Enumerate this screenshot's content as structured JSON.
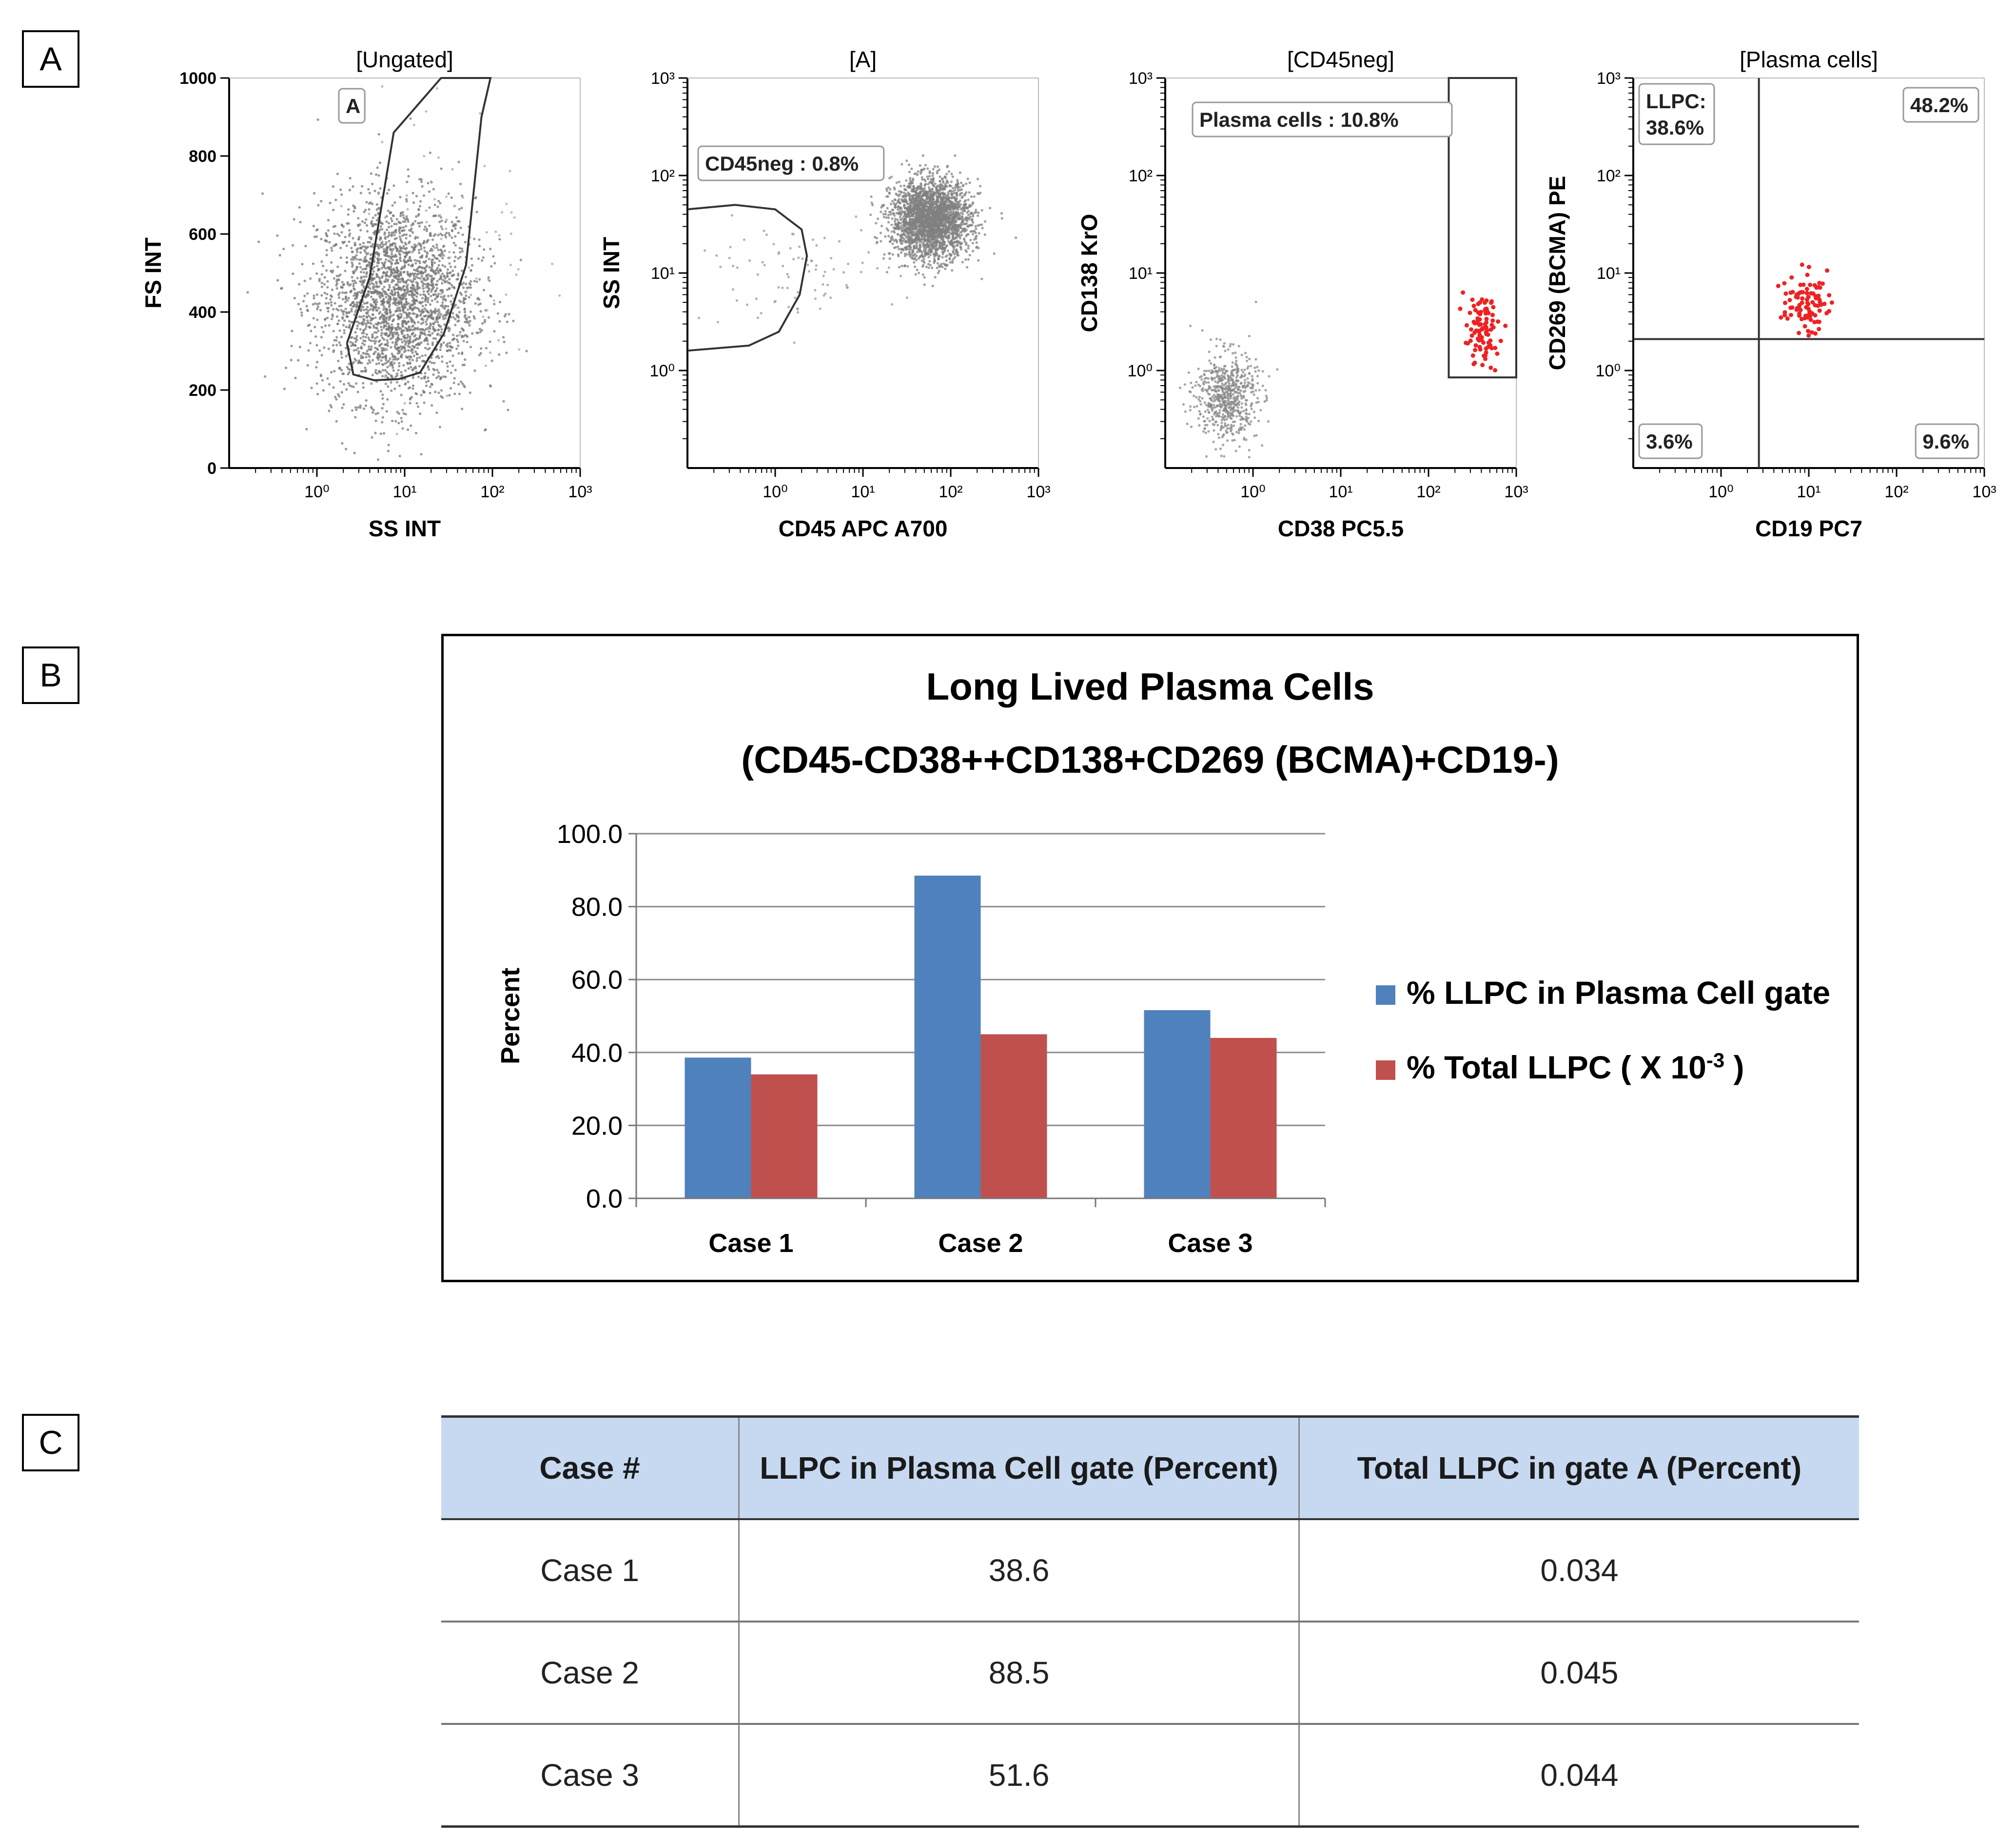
{
  "panel_labels": {
    "a": "A",
    "b": "B",
    "c": "C"
  },
  "chart_data": [
    {
      "type": "scatter",
      "title": "[Ungated]",
      "xlabel": "SS INT",
      "ylabel": "FS INT",
      "x_scale": "log",
      "xlim": [
        0.1,
        1000
      ],
      "x_ticks": [
        {
          "value": 1,
          "label": "10⁰"
        },
        {
          "value": 10,
          "label": "10¹"
        },
        {
          "value": 100,
          "label": "10²"
        },
        {
          "value": 1000,
          "label": "10³"
        }
      ],
      "y_scale": "linear",
      "ylim": [
        0,
        1000
      ],
      "y_ticks": [
        {
          "value": 0,
          "label": "0"
        },
        {
          "value": 200,
          "label": "200"
        },
        {
          "value": 400,
          "label": "400"
        },
        {
          "value": 600,
          "label": "600"
        },
        {
          "value": 800,
          "label": "800"
        },
        {
          "value": 1000,
          "label": "1000"
        }
      ],
      "gate": {
        "label": "A",
        "shape": "polygon",
        "vertices": [
          [
            2.2,
            320
          ],
          [
            2.6,
            240
          ],
          [
            4.5,
            225
          ],
          [
            8.5,
            228
          ],
          [
            15,
            245
          ],
          [
            28,
            345
          ],
          [
            50,
            520
          ],
          [
            75,
            900
          ],
          [
            95,
            1000
          ],
          [
            26,
            1000
          ],
          [
            7.5,
            860
          ],
          [
            4.0,
            490
          ],
          [
            2.2,
            320
          ]
        ]
      },
      "populations": [
        {
          "color": "#777777",
          "density": "dense",
          "x_center": 8,
          "x_spread": 0.9,
          "y_center": 430,
          "y_spread": 130
        },
        {
          "color": "#aaaaaa",
          "density": "sparse",
          "x_center": 30,
          "x_spread": 1.0,
          "y_center": 560,
          "y_spread": 200
        }
      ]
    },
    {
      "type": "scatter",
      "title": "[A]",
      "xlabel": "CD45 APC A700",
      "ylabel": "SS INT",
      "x_scale": "log",
      "xlim": [
        0.1,
        1000
      ],
      "x_ticks": [
        {
          "value": 1,
          "label": "10⁰"
        },
        {
          "value": 10,
          "label": "10¹"
        },
        {
          "value": 100,
          "label": "10²"
        },
        {
          "value": 1000,
          "label": "10³"
        }
      ],
      "y_scale": "log",
      "ylim": [
        0.1,
        1000
      ],
      "y_ticks": [
        {
          "value": 1,
          "label": "10⁰"
        },
        {
          "value": 10,
          "label": "10¹"
        },
        {
          "value": 100,
          "label": "10²"
        },
        {
          "value": 1000,
          "label": "10³"
        }
      ],
      "gate": {
        "label": "CD45neg : 0.8%",
        "shape": "polygon",
        "vertices": [
          [
            0.1,
            1.6
          ],
          [
            0.5,
            1.8
          ],
          [
            1.1,
            2.5
          ],
          [
            1.9,
            6
          ],
          [
            2.3,
            15
          ],
          [
            2,
            28
          ],
          [
            1.0,
            45
          ],
          [
            0.35,
            50
          ],
          [
            0.1,
            45
          ]
        ]
      },
      "populations": [
        {
          "color": "#808080",
          "density": "dense",
          "x_center": 60,
          "x_spread": 0.45,
          "y_center": 35,
          "y_spread": 0.4
        },
        {
          "color": "#999999",
          "density": "sparse",
          "x_center": 1.5,
          "x_spread": 1.2,
          "y_center": 10,
          "y_spread": 0.5
        }
      ]
    },
    {
      "type": "scatter",
      "title": "[CD45neg]",
      "xlabel": "CD38 PC5.5",
      "ylabel": "CD138 KrO",
      "x_scale": "log",
      "xlim": [
        0.1,
        1000
      ],
      "x_ticks": [
        {
          "value": 1,
          "label": "10⁰"
        },
        {
          "value": 10,
          "label": "10¹"
        },
        {
          "value": 100,
          "label": "10²"
        },
        {
          "value": 1000,
          "label": "10³"
        }
      ],
      "y_scale": "log",
      "ylim": [
        0.1,
        1000
      ],
      "y_ticks": [
        {
          "value": 1,
          "label": "10⁰"
        },
        {
          "value": 10,
          "label": "10¹"
        },
        {
          "value": 100,
          "label": "10²"
        },
        {
          "value": 1000,
          "label": "10³"
        }
      ],
      "gate": {
        "label": "Plasma cells : 10.8%",
        "shape": "rectangle",
        "x_range": [
          170,
          1000
        ],
        "y_range": [
          0.85,
          1000
        ]
      },
      "populations": [
        {
          "color": "#888888",
          "density": "medium",
          "x_center": 0.5,
          "x_spread": 0.35,
          "y_center": 0.55,
          "y_spread": 0.45
        },
        {
          "color": "#ee2222",
          "density": "sparse",
          "x_center": 400,
          "x_spread": 0.2,
          "y_center": 2.5,
          "y_spread": 0.35
        }
      ]
    },
    {
      "type": "scatter",
      "title": "[Plasma cells]",
      "xlabel": "CD19 PC7",
      "ylabel": "CD269 (BCMA) PE",
      "x_scale": "log",
      "xlim": [
        0.1,
        1000
      ],
      "x_ticks": [
        {
          "value": 1,
          "label": "10⁰"
        },
        {
          "value": 10,
          "label": "10¹"
        },
        {
          "value": 100,
          "label": "10²"
        },
        {
          "value": 1000,
          "label": "10³"
        }
      ],
      "y_scale": "log",
      "ylim": [
        0.1,
        1000
      ],
      "y_ticks": [
        {
          "value": 1,
          "label": "10⁰"
        },
        {
          "value": 10,
          "label": "10¹"
        },
        {
          "value": 100,
          "label": "10²"
        },
        {
          "value": 1000,
          "label": "10³"
        }
      ],
      "quadrant": {
        "x": 2.7,
        "y": 2.1
      },
      "quadrant_labels": {
        "top_left": [
          "LLPC:",
          "38.6%"
        ],
        "top_right": "48.2%",
        "bottom_left": "3.6%",
        "bottom_right": "9.6%"
      },
      "populations": [
        {
          "color": "#ee2222",
          "density": "sparse",
          "x_center": 9,
          "x_spread": 0.25,
          "y_center": 5,
          "y_spread": 0.3
        }
      ]
    },
    {
      "type": "bar",
      "title": [
        "Long Lived Plasma Cells",
        "(CD45-CD38++CD138+CD269  (BCMA)+CD19-)"
      ],
      "categories": [
        "Case 1",
        "Case 2",
        "Case 3"
      ],
      "series": [
        {
          "name": "% LLPC in Plasma Cell gate",
          "color": "#4f81bd",
          "values": [
            38.6,
            88.5,
            51.6
          ]
        },
        {
          "name": "% Total LLPC (   X 10",
          "name_exponent": "-3",
          "name_close": ")",
          "color": "#c0504d",
          "values": [
            34.0,
            45.0,
            44.0
          ]
        }
      ],
      "ylabel": "Percent",
      "ylim": [
        0,
        100
      ],
      "y_ticks": [
        0,
        20,
        40,
        60,
        80,
        100
      ],
      "y_tick_labels": [
        "0.0",
        "20.0",
        "40.0",
        "60.0",
        "80.0",
        "100.0"
      ],
      "grid": true,
      "legend": "right"
    }
  ],
  "table": {
    "headers": [
      "Case #",
      "LLPC in Plasma Cell gate (Percent)",
      "Total LLPC in gate A (Percent)"
    ],
    "rows": [
      [
        "Case 1",
        "38.6",
        "0.034"
      ],
      [
        "Case 2",
        "88.5",
        "0.045"
      ],
      [
        "Case 3",
        "51.6",
        "0.044"
      ]
    ]
  }
}
